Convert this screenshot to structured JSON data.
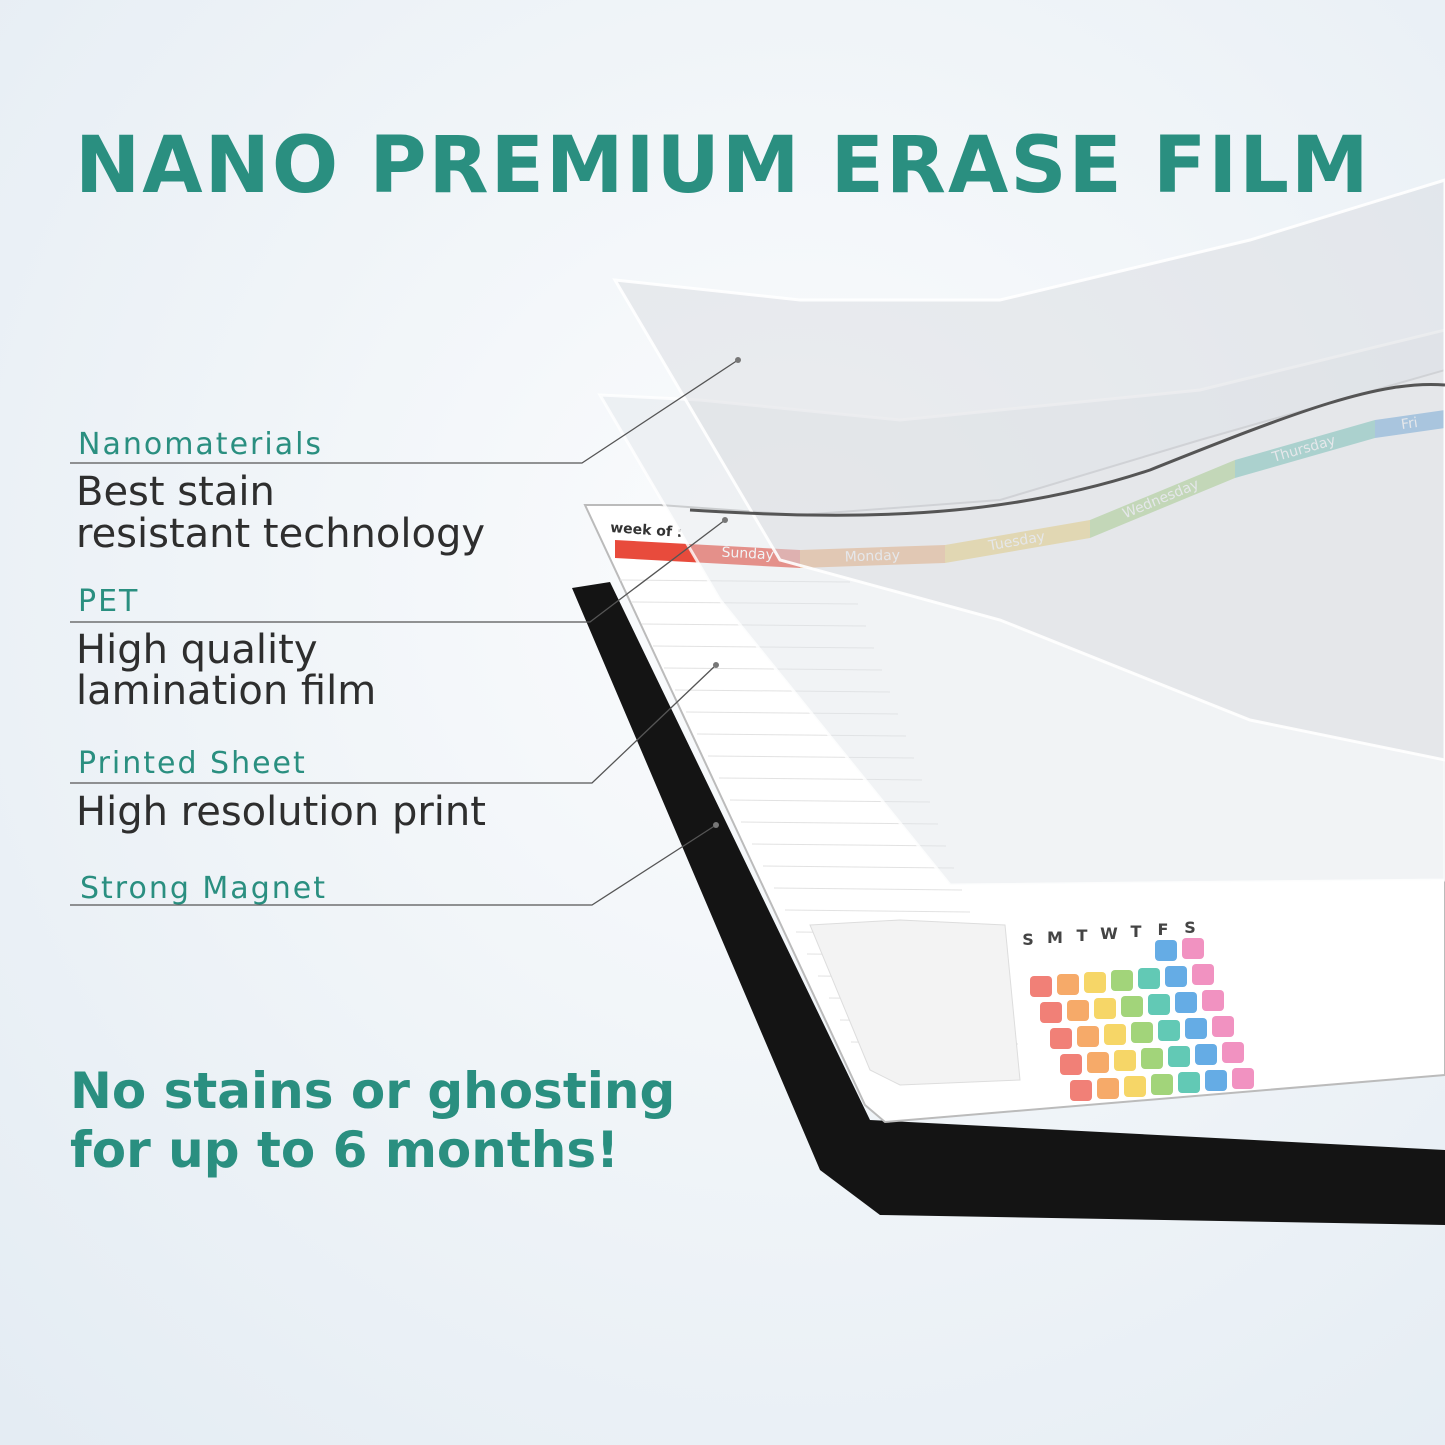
{
  "header": {
    "title": "NANO PREMIUM ERASE FILM"
  },
  "layers": [
    {
      "name": "Nanomaterials",
      "description": [
        "Best stain",
        "resistant technology"
      ]
    },
    {
      "name": "PET",
      "description": [
        "High quality",
        "lamination film"
      ]
    },
    {
      "name": "Printed Sheet",
      "description": [
        "High resolution print"
      ]
    },
    {
      "name": "Strong Magnet"
    }
  ],
  "tagline": [
    "No stains or ghosting",
    "for up to 6 months!"
  ],
  "planner": {
    "week_label": "week of :",
    "days": [
      "Sunday",
      "Monday",
      "Tuesday",
      "Wednesday",
      "Thursday",
      "Fri"
    ],
    "weekday_initials": [
      "S",
      "M",
      "T",
      "W",
      "T",
      "F",
      "S"
    ]
  }
}
